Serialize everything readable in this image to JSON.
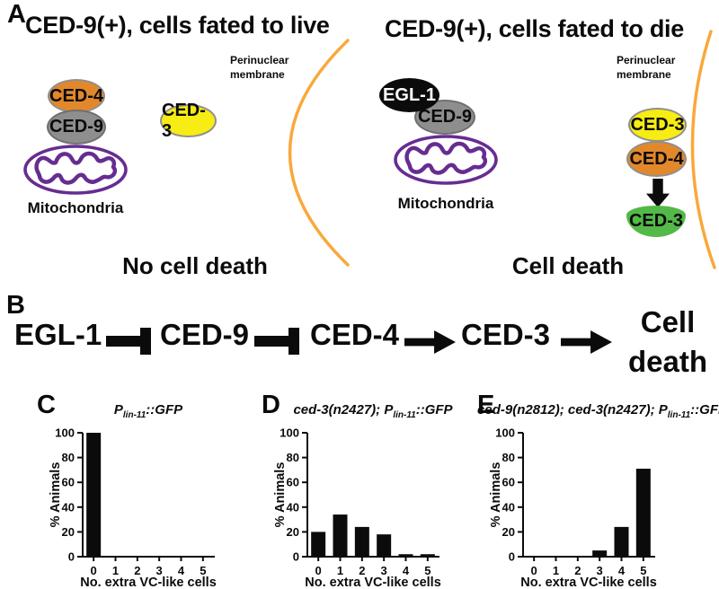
{
  "colors": {
    "ced4_orange": "#E2882B",
    "ced9_grey": "#8E8E8F",
    "ced3_yellow": "#F7EC13",
    "ced3_green": "#53B948",
    "egl1_black": "#0B0B0B",
    "mitochondria_purple": "#662D91",
    "membrane_orange": "#F9A83B",
    "ink_black": "#0B0B0B"
  },
  "panel_a": {
    "label": "A",
    "cells": [
      {
        "title": "CED-9(+), cells fated to live",
        "membrane_label": "Perinuclear membrane",
        "ced4": "CED-4",
        "ced9": "CED-9",
        "ced3": "CED-3",
        "mitochondria_label": "Mitochondria",
        "outcome": "No cell death"
      },
      {
        "title": "CED-9(+), cells fated to die",
        "membrane_label": "Perinuclear membrane",
        "egl1": "EGL-1",
        "ced9": "CED-9",
        "ced3_inactive": "CED-3",
        "ced4": "CED-4",
        "ced3_active": "CED-3",
        "mitochondria_label": "Mitochondria",
        "outcome": "Cell death"
      }
    ]
  },
  "panel_b": {
    "label": "B",
    "nodes": [
      "EGL-1",
      "CED-9",
      "CED-4",
      "CED-3"
    ],
    "links": [
      "inhibit",
      "inhibit",
      "activate",
      "activate"
    ],
    "terminal_line1": "Cell",
    "terminal_line2": "death"
  },
  "chart_data": [
    {
      "panel_label": "C",
      "type": "bar",
      "title_prefix": "",
      "title_main": "P",
      "title_sub": "lin-11",
      "title_suffix": "::GFP",
      "categories": [
        "0",
        "1",
        "2",
        "3",
        "4",
        "5"
      ],
      "values": [
        100,
        0,
        0,
        0,
        0,
        0
      ],
      "xlabel": "No. extra VC-like cells",
      "ylabel": "% Animals",
      "ylim": [
        0,
        100
      ],
      "yticks": [
        0,
        20,
        40,
        60,
        80,
        100
      ],
      "bar_color": "#0B0B0B",
      "grid": false,
      "legend": "none"
    },
    {
      "panel_label": "D",
      "type": "bar",
      "title_prefix": "ced-3(n2427); ",
      "title_main": "P",
      "title_sub": "lin-11",
      "title_suffix": "::GFP",
      "categories": [
        "0",
        "1",
        "2",
        "3",
        "4",
        "5"
      ],
      "values": [
        20,
        34,
        24,
        18,
        2,
        2
      ],
      "xlabel": "No. extra VC-like cells",
      "ylabel": "% Animals",
      "ylim": [
        0,
        100
      ],
      "yticks": [
        0,
        20,
        40,
        60,
        80,
        100
      ],
      "bar_color": "#0B0B0B",
      "grid": false,
      "legend": "none"
    },
    {
      "panel_label": "E",
      "type": "bar",
      "title_prefix": "ced-9(n2812); ced-3(n2427); ",
      "title_main": "P",
      "title_sub": "lin-11",
      "title_suffix": "::GFP",
      "categories": [
        "0",
        "1",
        "2",
        "3",
        "4",
        "5"
      ],
      "values": [
        0,
        0,
        0,
        5,
        24,
        71
      ],
      "xlabel": "No. extra VC-like cells",
      "ylabel": "% Animals",
      "ylim": [
        0,
        100
      ],
      "yticks": [
        0,
        20,
        40,
        60,
        80,
        100
      ],
      "bar_color": "#0B0B0B",
      "grid": false,
      "legend": "none"
    }
  ]
}
